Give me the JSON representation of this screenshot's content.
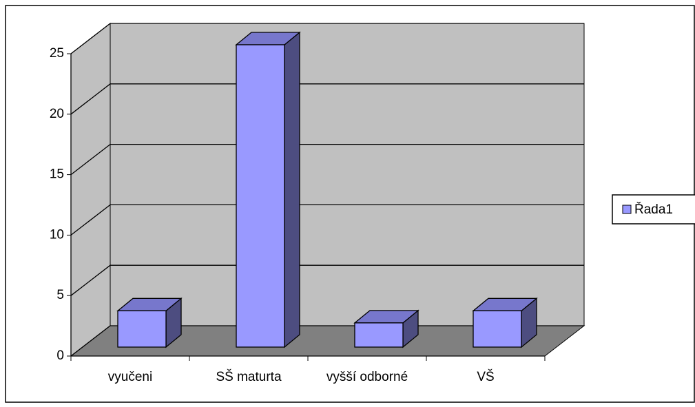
{
  "chart_data": {
    "type": "bar3d",
    "categories": [
      "vyučeni",
      "SŠ maturta",
      "vyšší odborné",
      "VŠ"
    ],
    "series": [
      {
        "name": "Řada1",
        "color": "#9999ff",
        "values": [
          3,
          25,
          2,
          3
        ]
      }
    ],
    "ylim": [
      0,
      25
    ],
    "yticks": [
      0,
      5,
      10,
      15,
      20,
      25
    ],
    "grid": true,
    "legend": "right"
  }
}
